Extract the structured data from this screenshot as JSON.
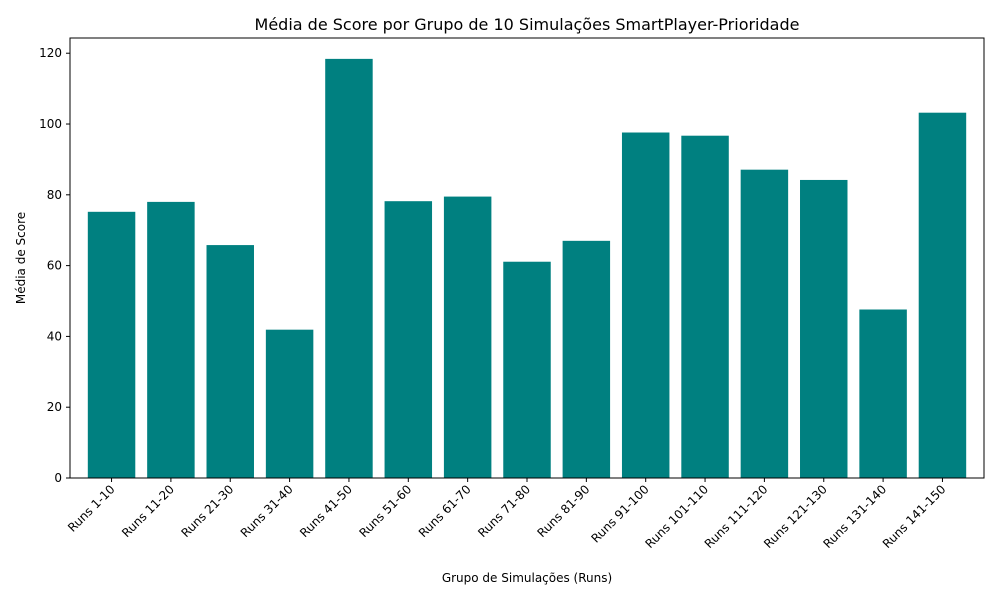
{
  "chart_data": {
    "type": "bar",
    "title": "Média de Score por Grupo de 10 Simulações SmartPlayer-Prioridade",
    "xlabel": "Grupo de Simulações (Runs)",
    "ylabel": "Média de Score",
    "categories": [
      "Runs 1-10",
      "Runs 11-20",
      "Runs 21-30",
      "Runs 31-40",
      "Runs 41-50",
      "Runs 51-60",
      "Runs 61-70",
      "Runs 71-80",
      "Runs 81-90",
      "Runs 91-100",
      "Runs 101-110",
      "Runs 111-120",
      "Runs 121-130",
      "Runs 131-140",
      "Runs 141-150"
    ],
    "values": [
      75.2,
      78.0,
      65.8,
      41.9,
      118.4,
      78.2,
      79.5,
      61.1,
      67.0,
      97.6,
      96.7,
      87.1,
      84.2,
      47.6,
      103.2
    ],
    "ylim": [
      0,
      124.3
    ],
    "yticks": [
      0,
      20,
      40,
      60,
      80,
      100,
      120
    ],
    "bar_color": "#008080",
    "grid": false,
    "legend": "none"
  }
}
